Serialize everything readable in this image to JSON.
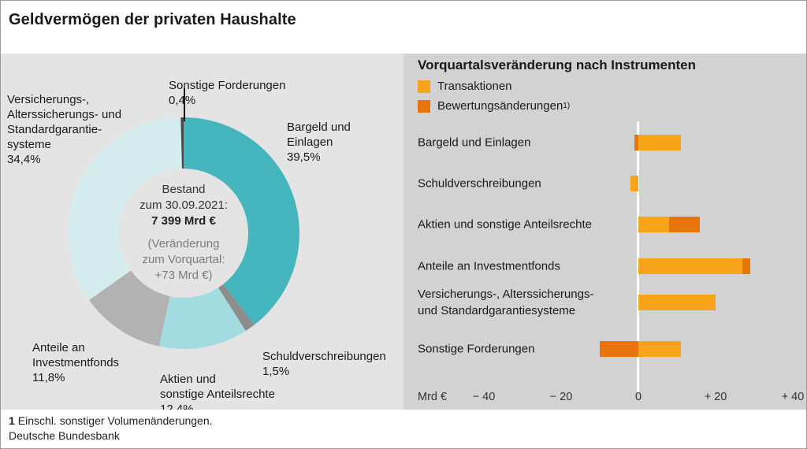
{
  "title": "Geldvermögen der privaten Haushalte",
  "footer": {
    "footnote_marker": "1",
    "footnote_text": "Einschl. sonstiger Volumenänderungen.",
    "source": "Deutsche Bundesbank"
  },
  "chart_data": [
    {
      "type": "pie",
      "title": "Geldvermögen der privaten Haushalte",
      "unit": "%",
      "slices": [
        {
          "label": "Bargeld und\nEinlagen",
          "pct": "39,5%",
          "value": 39.5,
          "color": "#45b6bd"
        },
        {
          "label": "Schuldverschreibungen",
          "pct": "1,5%",
          "value": 1.5,
          "color": "#8d8d8d"
        },
        {
          "label": "Aktien und\nsonstige Anteilsrechte",
          "pct": "12,4%",
          "value": 12.4,
          "color": "#a3dce0"
        },
        {
          "label": "Anteile an\nInvestmentfonds",
          "pct": "11,8%",
          "value": 11.8,
          "color": "#b3b2b2"
        },
        {
          "label": "Versicherungs-,\nAlterssicherungs- und\nStandardgarantie-\nsysteme",
          "pct": "34,4%",
          "value": 34.4,
          "color": "#d5edef"
        },
        {
          "label": "Sonstige Forderungen",
          "pct": "0,4%",
          "value": 0.4,
          "color": "#4b4b4b"
        }
      ],
      "center": {
        "line1": "Bestand",
        "line2": "zum 30.09.2021:",
        "line3": "7 399 Mrd €",
        "line4": "(Veränderung",
        "line5": "zum Vorquartal:",
        "line6": "+73 Mrd €)"
      }
    },
    {
      "type": "bar",
      "orientation": "horizontal",
      "title": "Vorquartalsveränderung nach Instrumenten",
      "unit": "Mrd €",
      "xlim": [
        -50,
        42
      ],
      "legend_position": "top-left",
      "legend_footnote_sup": "1)",
      "categories": [
        "Bargeld und Einlagen",
        "Schuldverschreibungen",
        "Aktien und sonstige Anteilsrechte",
        "Anteile an Investmentfonds",
        "Versicherungs-, Alterssicherungs-\nund Standardgarantiesysteme",
        "Sonstige Forderungen"
      ],
      "series": [
        {
          "name": "Transaktionen",
          "color": "#f7a41b",
          "values": [
            11,
            -2,
            8,
            27,
            20,
            11
          ]
        },
        {
          "name": "Bewertungsänderungen",
          "color": "#e8740c",
          "values": [
            -1,
            0,
            8,
            2,
            0,
            -10
          ]
        }
      ],
      "ticks": [
        {
          "value": -40,
          "label": "− 40"
        },
        {
          "value": -20,
          "label": "− 20"
        },
        {
          "value": 0,
          "label": "0"
        },
        {
          "value": 20,
          "label": "+ 20"
        },
        {
          "value": 40,
          "label": "+ 40"
        }
      ]
    }
  ]
}
